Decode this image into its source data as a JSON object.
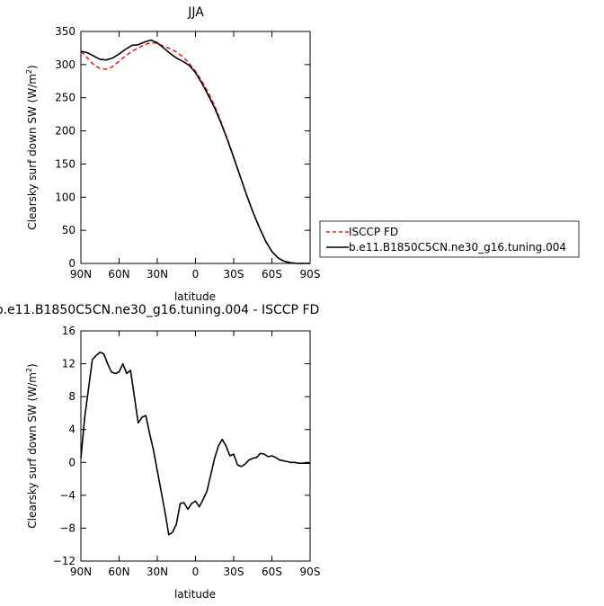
{
  "chart_data": [
    {
      "type": "line",
      "title": "JJA",
      "xlabel": "latitude",
      "ylabel_main": "Clearsky surf down SW (W/m",
      "ylabel_sup": "2",
      "ylabel_end": ")",
      "xlim": [
        90,
        -90
      ],
      "ylim": [
        0,
        350
      ],
      "xticks": [
        90,
        60,
        30,
        0,
        -30,
        -60,
        -90
      ],
      "xtick_labels": [
        "90N",
        "60N",
        "30N",
        "0",
        "30S",
        "60S",
        "90S"
      ],
      "yticks": [
        0,
        50,
        100,
        150,
        200,
        250,
        300,
        350
      ],
      "ytick_labels": [
        "0",
        "50",
        "100",
        "150",
        "200",
        "250",
        "300",
        "350"
      ],
      "legend_position": "right",
      "series": [
        {
          "name": "ISCCP FD",
          "color": "#e8262a",
          "dash": "dashed",
          "x": [
            90,
            85,
            80,
            75,
            70,
            65,
            60,
            55,
            50,
            45,
            40,
            35,
            30,
            25,
            20,
            15,
            10,
            5,
            0,
            -5,
            -10,
            -15,
            -20,
            -25,
            -30,
            -35,
            -40,
            -45,
            -50,
            -55,
            -60,
            -65,
            -70,
            -75,
            -80,
            -85,
            -90
          ],
          "y": [
            320,
            310,
            300,
            294,
            293,
            297,
            305,
            313,
            320,
            325,
            330,
            333,
            332,
            328,
            324,
            319,
            312,
            302,
            290,
            275,
            258,
            238,
            214,
            188,
            160,
            132,
            104,
            78,
            55,
            34,
            18,
            8,
            3,
            1,
            0,
            0,
            0
          ]
        },
        {
          "name": "b.e11.B1850C5CN.ne30_g16.tuning.004",
          "color": "#000000",
          "dash": "solid",
          "x": [
            90,
            85,
            80,
            75,
            70,
            65,
            60,
            55,
            50,
            45,
            40,
            35,
            30,
            25,
            20,
            15,
            10,
            5,
            0,
            -5,
            -10,
            -15,
            -20,
            -25,
            -30,
            -35,
            -40,
            -45,
            -50,
            -55,
            -60,
            -65,
            -70,
            -75,
            -80,
            -85,
            -90
          ],
          "y": [
            320,
            318,
            313,
            308,
            307,
            310,
            316,
            323,
            329,
            330,
            334,
            337,
            333,
            325,
            317,
            310,
            305,
            299,
            288,
            272,
            254,
            235,
            212,
            187,
            160,
            132,
            104,
            78,
            55,
            34,
            18,
            8,
            3,
            1,
            0,
            0,
            0
          ]
        }
      ]
    },
    {
      "type": "line",
      "title": "b.e11.B1850C5CN.ne30_g16.tuning.004 - ISCCP FD",
      "xlabel": "latitude",
      "ylabel_main": "Clearsky surf down SW (W/m",
      "ylabel_sup": "2",
      "ylabel_end": ")",
      "xlim": [
        90,
        -90
      ],
      "ylim": [
        -12,
        16
      ],
      "xticks": [
        90,
        60,
        30,
        0,
        -30,
        -60,
        -90
      ],
      "xtick_labels": [
        "90N",
        "60N",
        "30N",
        "0",
        "30S",
        "60S",
        "90S"
      ],
      "yticks": [
        -12,
        -8,
        -4,
        0,
        4,
        8,
        12,
        16
      ],
      "ytick_labels": [
        "−12",
        "−8",
        "−4",
        "0",
        "4",
        "8",
        "12",
        "16"
      ],
      "series": [
        {
          "color": "#000000",
          "dash": "solid",
          "x": [
            90,
            87,
            84,
            81,
            78,
            75,
            72,
            69,
            66,
            63,
            60,
            57,
            54,
            51,
            48,
            45,
            42,
            39,
            36,
            33,
            30,
            27,
            24,
            21,
            18,
            15,
            12,
            9,
            6,
            3,
            0,
            -3,
            -6,
            -9,
            -12,
            -15,
            -18,
            -21,
            -24,
            -27,
            -30,
            -33,
            -36,
            -39,
            -42,
            -45,
            -48,
            -51,
            -54,
            -57,
            -60,
            -63,
            -66,
            -69,
            -72,
            -75,
            -78,
            -81,
            -84,
            -87,
            -90
          ],
          "y": [
            0.5,
            5.5,
            9.0,
            12.5,
            13.0,
            13.4,
            13.2,
            12.0,
            11.0,
            10.8,
            11.0,
            12.0,
            10.8,
            11.2,
            8.0,
            4.8,
            5.5,
            5.7,
            3.5,
            1.5,
            -1.0,
            -3.5,
            -6.0,
            -8.8,
            -8.5,
            -7.5,
            -5.0,
            -4.9,
            -5.7,
            -5.0,
            -4.7,
            -5.4,
            -4.5,
            -3.5,
            -1.5,
            0.5,
            2.0,
            2.8,
            2.0,
            0.8,
            1.0,
            -0.3,
            -0.5,
            -0.2,
            0.3,
            0.5,
            0.6,
            1.1,
            1.0,
            0.7,
            0.8,
            0.6,
            0.3,
            0.2,
            0.1,
            0.0,
            0.0,
            -0.1,
            -0.1,
            -0.1,
            -0.1
          ]
        }
      ]
    }
  ]
}
